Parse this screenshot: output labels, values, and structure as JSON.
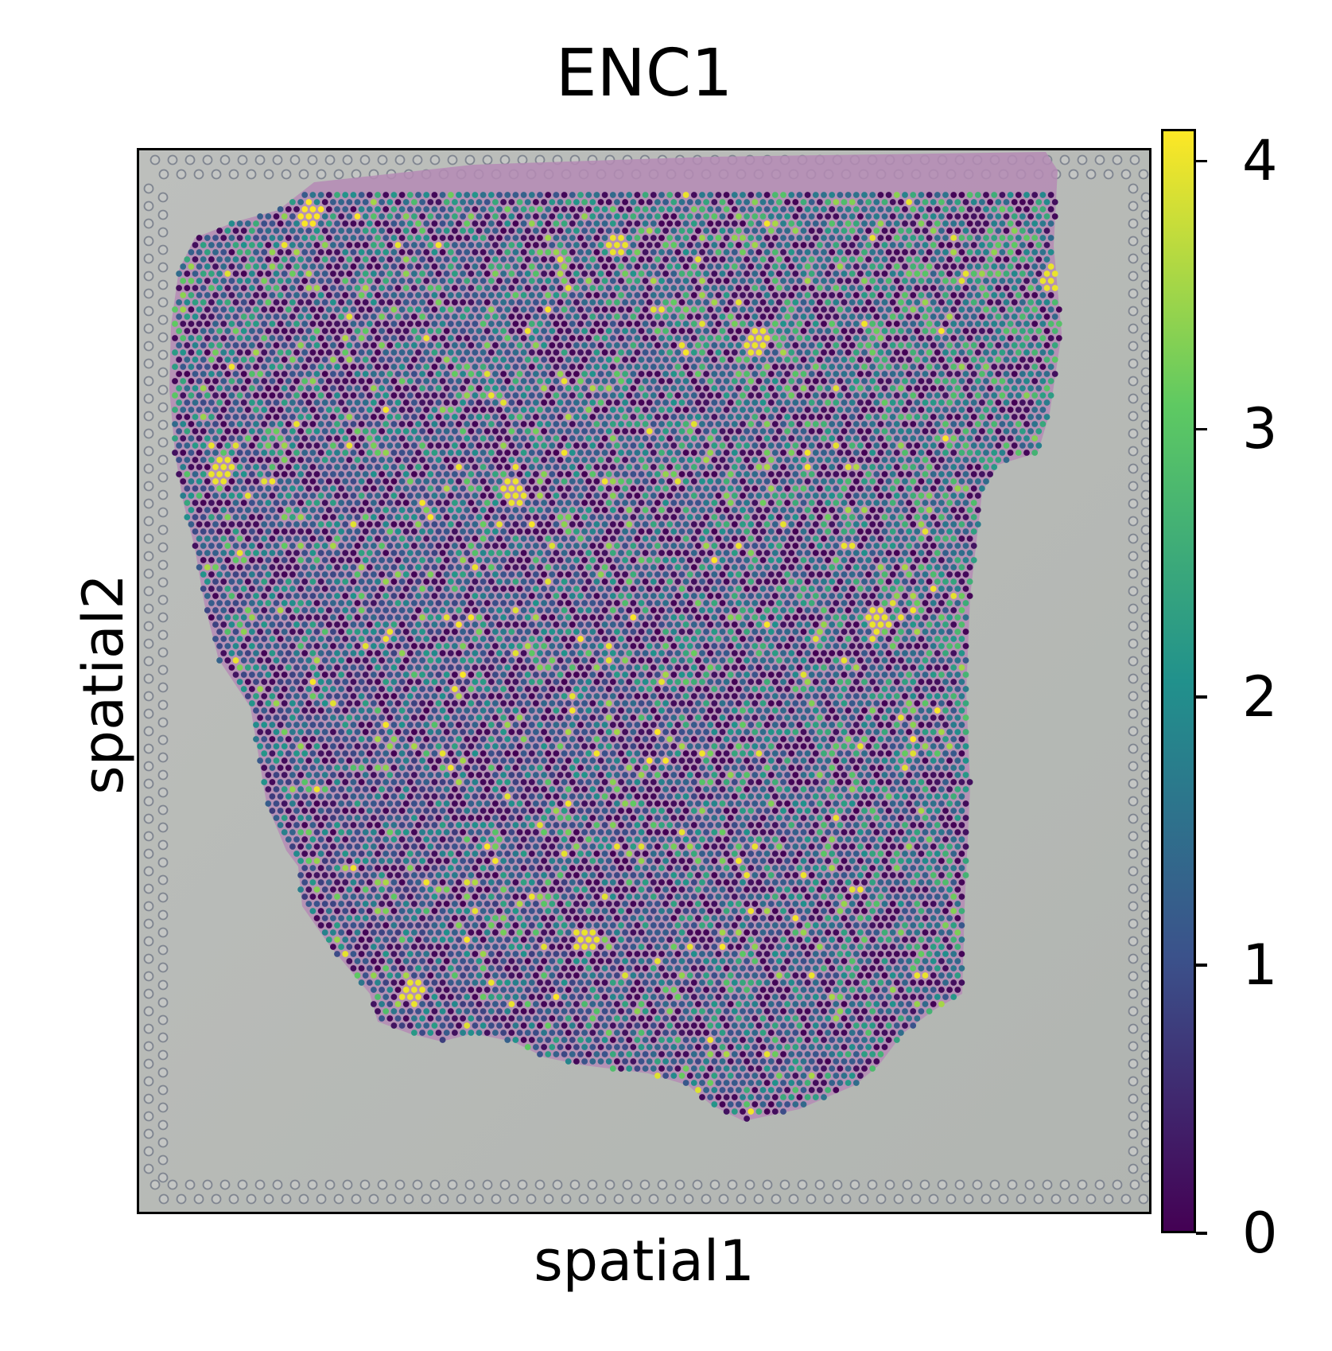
{
  "chart_data": {
    "type": "scatter",
    "title": "ENC1",
    "xlabel": "spatial1",
    "ylabel": "spatial2",
    "xticks": [],
    "yticks": [],
    "background": "H&E tissue section image with Visium spot grid",
    "colorbar": {
      "colormap": "viridis",
      "range": [
        0,
        4.12
      ],
      "ticks": [
        0,
        1,
        2,
        3,
        4
      ],
      "tick_labels": [
        "0",
        "1",
        "2",
        "3",
        "4"
      ]
    },
    "legend": "colorbar right",
    "grid": false,
    "series": [
      {
        "description_of_distribution": "hexagonal grid of spots covering tissue",
        "value_range": [
          0,
          4.12
        ],
        "high_value_spots_approx": [
          {
            "x": 0.17,
            "y": 0.06,
            "value": 4.1
          },
          {
            "x": 0.47,
            "y": 0.09,
            "value": 4.0
          },
          {
            "x": 0.9,
            "y": 0.12,
            "value": 4.0
          },
          {
            "x": 0.61,
            "y": 0.18,
            "value": 4.0
          },
          {
            "x": 0.08,
            "y": 0.3,
            "value": 4.0
          },
          {
            "x": 0.37,
            "y": 0.32,
            "value": 4.0
          },
          {
            "x": 0.73,
            "y": 0.44,
            "value": 4.0
          },
          {
            "x": 0.44,
            "y": 0.74,
            "value": 4.0
          },
          {
            "x": 0.27,
            "y": 0.79,
            "value": 4.0
          }
        ]
      }
    ]
  },
  "colors": {
    "viridis_0": "#440154",
    "viridis_1": "#3b528b",
    "viridis_2": "#21918c",
    "viridis_3": "#5ec962",
    "viridis_4": "#fde725",
    "tissue": "#b58bb5",
    "slide_background": "#b6bab6"
  }
}
